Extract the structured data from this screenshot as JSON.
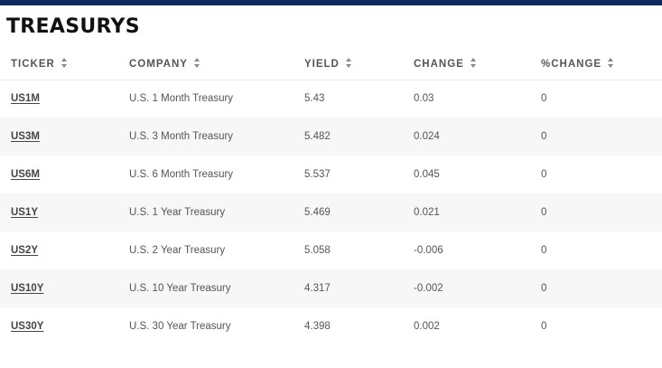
{
  "title": "TREASURYS",
  "columns": [
    "TICKER",
    "COMPANY",
    "YIELD",
    "CHANGE",
    "%CHANGE"
  ],
  "rows": [
    {
      "ticker": "US1M",
      "company": "U.S. 1 Month Treasury",
      "yield": "5.43",
      "change": "0.03",
      "pct_change": "0"
    },
    {
      "ticker": "US3M",
      "company": "U.S. 3 Month Treasury",
      "yield": "5.482",
      "change": "0.024",
      "pct_change": "0"
    },
    {
      "ticker": "US6M",
      "company": "U.S. 6 Month Treasury",
      "yield": "5.537",
      "change": "0.045",
      "pct_change": "0"
    },
    {
      "ticker": "US1Y",
      "company": "U.S. 1 Year Treasury",
      "yield": "5.469",
      "change": "0.021",
      "pct_change": "0"
    },
    {
      "ticker": "US2Y",
      "company": "U.S. 2 Year Treasury",
      "yield": "5.058",
      "change": "-0.006",
      "pct_change": "0"
    },
    {
      "ticker": "US10Y",
      "company": "U.S. 10 Year Treasury",
      "yield": "4.317",
      "change": "-0.002",
      "pct_change": "0"
    },
    {
      "ticker": "US30Y",
      "company": "U.S. 30 Year Treasury",
      "yield": "4.398",
      "change": "0.002",
      "pct_change": "0"
    }
  ],
  "colors": {
    "top_bar": "#0c2a5c",
    "row_stripe": "#f7f7f7"
  }
}
